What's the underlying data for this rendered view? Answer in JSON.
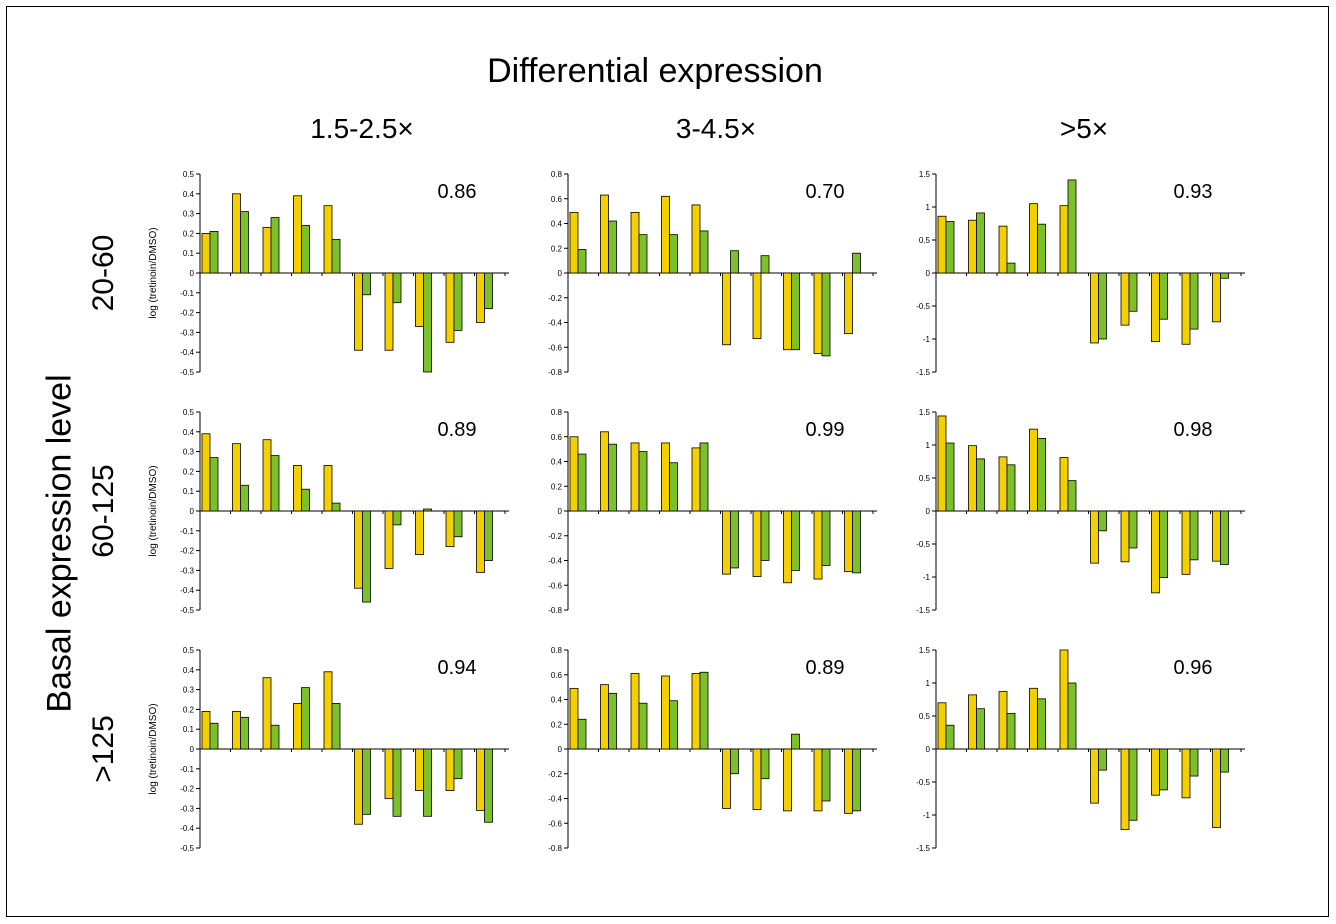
{
  "title": "Differential expression",
  "column_titles": [
    "1.5-2.5×",
    "3-4.5×",
    ">5×"
  ],
  "row_axis_title": "Basal expression level",
  "row_titles": [
    "20-60",
    "60-125",
    ">125"
  ],
  "colors": {
    "series_a": "#F5D000",
    "series_b": "#7DC12A",
    "stroke": "#000000"
  },
  "chart_data": [
    {
      "type": "bar",
      "ylabel": "log (tretinoin/DMSO)",
      "ylim": [
        -0.5,
        0.5
      ],
      "yticks": [
        0.5,
        0.4,
        0.3,
        0.2,
        0.1,
        0,
        -0.1,
        -0.2,
        -0.3,
        -0.4,
        -0.5
      ],
      "yticklabels": [
        "0.5",
        "0.4",
        "0.3",
        "0.2",
        "0.1",
        "0",
        "-0.1",
        "-0.2",
        "-0.3",
        "-0.4",
        "-0.5"
      ],
      "correlation": "0.86",
      "series": [
        {
          "values": [
            0.2,
            0.4,
            0.23,
            0.39,
            0.34,
            -0.39,
            -0.39,
            -0.27,
            -0.35,
            -0.25
          ]
        },
        {
          "values": [
            0.21,
            0.31,
            0.28,
            0.24,
            0.17,
            -0.11,
            -0.15,
            -0.52,
            -0.29,
            -0.18
          ]
        }
      ]
    },
    {
      "type": "bar",
      "ylabel": "",
      "ylim": [
        -0.8,
        0.8
      ],
      "yticks": [
        0.8,
        0.6,
        0.4,
        0.2,
        0,
        -0.2,
        -0.4,
        -0.6,
        -0.8
      ],
      "yticklabels": [
        "0.8",
        "0.6",
        "0.4",
        "0.2",
        "0",
        "-0.2",
        "-0.4",
        "-0.6",
        "-0.8"
      ],
      "correlation": "0.70",
      "series": [
        {
          "values": [
            0.49,
            0.63,
            0.49,
            0.62,
            0.55,
            -0.58,
            -0.53,
            -0.62,
            -0.65,
            -0.49
          ]
        },
        {
          "values": [
            0.19,
            0.42,
            0.31,
            0.31,
            0.34,
            0.18,
            0.14,
            -0.62,
            -0.67,
            0.16
          ]
        }
      ]
    },
    {
      "type": "bar",
      "ylabel": "",
      "ylim": [
        -1.5,
        1.5
      ],
      "yticks": [
        1.5,
        1,
        0.5,
        0,
        -0.5,
        -1,
        -1.5
      ],
      "yticklabels": [
        "1.5",
        "1",
        "0.5",
        "0",
        "-0.5",
        "-1",
        "-1.5"
      ],
      "correlation": "0.93",
      "series": [
        {
          "values": [
            0.86,
            0.8,
            0.71,
            1.05,
            1.02,
            -1.06,
            -0.79,
            -1.04,
            -1.08,
            -0.74
          ]
        },
        {
          "values": [
            0.78,
            0.91,
            0.15,
            0.74,
            1.41,
            -1.0,
            -0.58,
            -0.7,
            -0.85,
            -0.08
          ]
        }
      ]
    },
    {
      "type": "bar",
      "ylabel": "log (tretinoin/DMSO)",
      "ylim": [
        -0.5,
        0.5
      ],
      "yticks": [
        0.5,
        0.4,
        0.3,
        0.2,
        0.1,
        0,
        -0.1,
        -0.2,
        -0.3,
        -0.4,
        -0.5
      ],
      "yticklabels": [
        "0.5",
        "0.4",
        "0.3",
        "0.2",
        "0.1",
        "0",
        "-0.1",
        "-0.2",
        "-0.3",
        "-0.4",
        "-0.5"
      ],
      "correlation": "0.89",
      "series": [
        {
          "values": [
            0.39,
            0.34,
            0.36,
            0.23,
            0.23,
            -0.39,
            -0.29,
            -0.22,
            -0.18,
            -0.31
          ]
        },
        {
          "values": [
            0.27,
            0.13,
            0.28,
            0.11,
            0.04,
            -0.46,
            -0.07,
            0.01,
            -0.13,
            -0.25
          ]
        }
      ]
    },
    {
      "type": "bar",
      "ylabel": "",
      "ylim": [
        -0.8,
        0.8
      ],
      "yticks": [
        0.8,
        0.6,
        0.4,
        0.2,
        0,
        -0.2,
        -0.4,
        -0.6,
        -0.8
      ],
      "yticklabels": [
        "0.8",
        "0.6",
        "0.4",
        "0.2",
        "0",
        "-0.2",
        "-0.4",
        "-0.6",
        "-0.8"
      ],
      "correlation": "0.99",
      "series": [
        {
          "values": [
            0.6,
            0.64,
            0.55,
            0.55,
            0.51,
            -0.51,
            -0.53,
            -0.58,
            -0.55,
            -0.49
          ]
        },
        {
          "values": [
            0.46,
            0.54,
            0.48,
            0.39,
            0.55,
            -0.46,
            -0.4,
            -0.48,
            -0.44,
            -0.5
          ]
        }
      ]
    },
    {
      "type": "bar",
      "ylabel": "",
      "ylim": [
        -1.5,
        1.5
      ],
      "yticks": [
        1.5,
        1,
        0.5,
        0,
        -0.5,
        -1,
        -1.5
      ],
      "yticklabels": [
        "1.5",
        "1",
        "0.5",
        "0",
        "-0.5",
        "-1",
        "-1.5"
      ],
      "correlation": "0.98",
      "series": [
        {
          "values": [
            1.44,
            0.99,
            0.82,
            1.24,
            0.81,
            -0.79,
            -0.77,
            -1.24,
            -0.96,
            -0.76
          ]
        },
        {
          "values": [
            1.03,
            0.79,
            0.7,
            1.1,
            0.46,
            -0.3,
            -0.56,
            -1.01,
            -0.74,
            -0.81
          ]
        }
      ]
    },
    {
      "type": "bar",
      "ylabel": "log (tretinoin/DMSO)",
      "ylim": [
        -0.5,
        0.5
      ],
      "yticks": [
        0.5,
        0.4,
        0.3,
        0.2,
        0.1,
        0,
        -0.1,
        -0.2,
        -0.3,
        -0.4,
        -0.5
      ],
      "yticklabels": [
        "0.5",
        "0.4",
        "0.3",
        "0.2",
        "0.1",
        "0",
        "-0.1",
        "-0.2",
        "-0.3",
        "-0.4",
        "-0.5"
      ],
      "correlation": "0.94",
      "series": [
        {
          "values": [
            0.19,
            0.19,
            0.36,
            0.23,
            0.39,
            -0.38,
            -0.25,
            -0.21,
            -0.21,
            -0.31
          ]
        },
        {
          "values": [
            0.13,
            0.16,
            0.12,
            0.31,
            0.23,
            -0.33,
            -0.34,
            -0.34,
            -0.15,
            -0.37
          ]
        }
      ]
    },
    {
      "type": "bar",
      "ylabel": "",
      "ylim": [
        -0.8,
        0.8
      ],
      "yticks": [
        0.8,
        0.6,
        0.4,
        0.2,
        0,
        -0.2,
        -0.4,
        -0.6,
        -0.8
      ],
      "yticklabels": [
        "0.8",
        "0.6",
        "0.4",
        "0.2",
        "0",
        "-0.2",
        "-0.4",
        "-0.6",
        "-0.8"
      ],
      "correlation": "0.89",
      "series": [
        {
          "values": [
            0.49,
            0.52,
            0.61,
            0.59,
            0.61,
            -0.48,
            -0.49,
            -0.5,
            -0.5,
            -0.52
          ]
        },
        {
          "values": [
            0.24,
            0.45,
            0.37,
            0.39,
            0.62,
            -0.2,
            -0.24,
            0.12,
            -0.42,
            -0.5
          ]
        }
      ]
    },
    {
      "type": "bar",
      "ylabel": "",
      "ylim": [
        -1.5,
        1.5
      ],
      "yticks": [
        1.5,
        1,
        0.5,
        0,
        -0.5,
        -1,
        -1.5
      ],
      "yticklabels": [
        "1.5",
        "1",
        "0.5",
        "0",
        "-0.5",
        "-1",
        "-1.5"
      ],
      "correlation": "0.96",
      "series": [
        {
          "values": [
            0.7,
            0.82,
            0.87,
            0.92,
            1.55,
            -0.82,
            -1.22,
            -0.7,
            -0.74,
            -1.19
          ]
        },
        {
          "values": [
            0.36,
            0.61,
            0.54,
            0.76,
            1.0,
            -0.32,
            -1.08,
            -0.62,
            -0.41,
            -0.35
          ]
        }
      ]
    }
  ]
}
